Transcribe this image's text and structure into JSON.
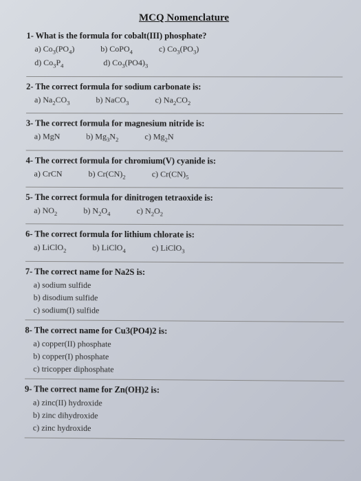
{
  "title": "MCQ Nomenclature",
  "questions": [
    {
      "num": "1-",
      "text": "What is the formula for cobalt(III) phosphate?",
      "layout": "row2",
      "row1": [
        {
          "k": "a)",
          "v": "Co₃(PO₄)"
        },
        {
          "k": "b)",
          "v": "CoPO₄"
        },
        {
          "k": "c)",
          "v": "Co₃(PO₃)"
        }
      ],
      "row2": [
        {
          "k": "d)",
          "v": "Co₃P₄"
        },
        {
          "k": "d)",
          "v": "Co₃(PO4)₃"
        }
      ]
    },
    {
      "num": "2-",
      "text": "The correct formula for sodium carbonate is:",
      "layout": "row",
      "opts": [
        {
          "k": "a)",
          "v": "Na₂CO₃"
        },
        {
          "k": "b)",
          "v": "NaCO₃"
        },
        {
          "k": "c)",
          "v": "Na₂CO₂"
        }
      ]
    },
    {
      "num": "3-",
      "text": "The correct formula for magnesium nitride is:",
      "layout": "row",
      "opts": [
        {
          "k": "a)",
          "v": "MgN"
        },
        {
          "k": "b)",
          "v": "Mg₃N₂"
        },
        {
          "k": "c)",
          "v": "Mg₂N"
        }
      ]
    },
    {
      "num": "4-",
      "text": "The correct formula for chromium(V) cyanide is:",
      "layout": "row",
      "opts": [
        {
          "k": "a)",
          "v": "CrCN"
        },
        {
          "k": "b)",
          "v": "Cr(CN)₂"
        },
        {
          "k": "c)",
          "v": "Cr(CN)₅"
        }
      ]
    },
    {
      "num": "5-",
      "text": "The correct formula for dinitrogen tetraoxide is:",
      "layout": "row",
      "opts": [
        {
          "k": "a)",
          "v": "NO₂"
        },
        {
          "k": "b)",
          "v": "N₂O₄"
        },
        {
          "k": "c)",
          "v": "N₂O₂"
        }
      ]
    },
    {
      "num": "6-",
      "text": "The correct formula for lithium chlorate is:",
      "layout": "row",
      "opts": [
        {
          "k": "a)",
          "v": "LiClO₂"
        },
        {
          "k": "b)",
          "v": "LiClO₄"
        },
        {
          "k": "c)",
          "v": "LiClO₃"
        }
      ]
    },
    {
      "num": "7-",
      "text": "The correct name for Na2S is:",
      "layout": "col",
      "opts": [
        {
          "k": "a)",
          "v": "sodium sulfide"
        },
        {
          "k": "b)",
          "v": "disodium sulfide"
        },
        {
          "k": "c)",
          "v": "sodium(I) sulfide"
        }
      ]
    },
    {
      "num": "8-",
      "text": "The correct name for Cu3(PO4)2 is:",
      "layout": "col",
      "opts": [
        {
          "k": "a)",
          "v": "copper(II) phosphate"
        },
        {
          "k": "b)",
          "v": "copper(I) phosphate"
        },
        {
          "k": "c)",
          "v": "tricopper diphosphate"
        }
      ]
    },
    {
      "num": "9-",
      "text": "The correct name for Zn(OH)2 is:",
      "layout": "col",
      "opts": [
        {
          "k": "a)",
          "v": "zinc(II) hydroxide"
        },
        {
          "k": "b)",
          "v": "zinc dihydroxide"
        },
        {
          "k": "c)",
          "v": "zinc hydroxide"
        }
      ]
    }
  ]
}
